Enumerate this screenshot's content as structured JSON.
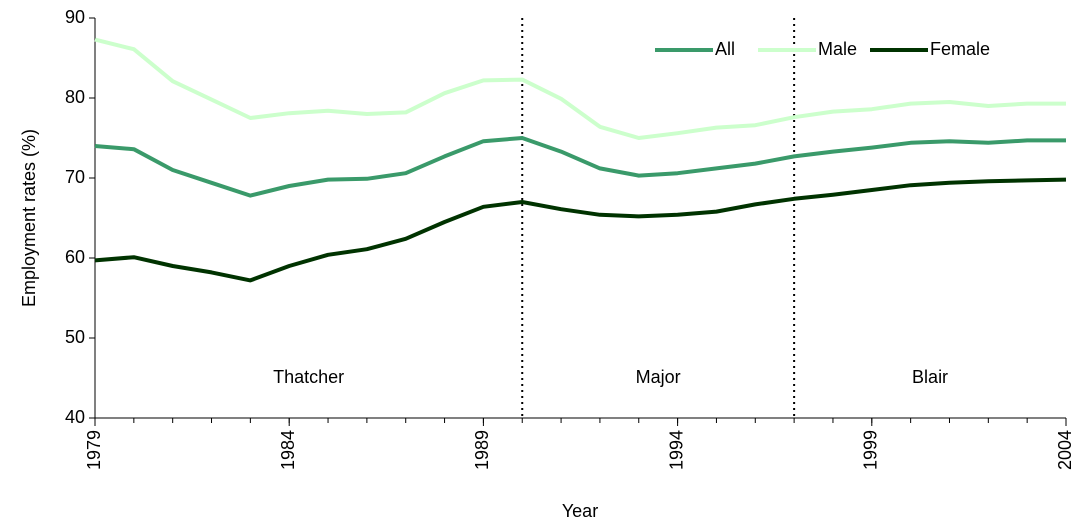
{
  "chart_data": {
    "type": "line",
    "x_label": "Year",
    "y_label": "Employment rates (%)",
    "x": [
      1979,
      1980,
      1981,
      1982,
      1983,
      1984,
      1985,
      1986,
      1987,
      1988,
      1989,
      1990,
      1991,
      1992,
      1993,
      1994,
      1995,
      1996,
      1997,
      1998,
      1999,
      2000,
      2001,
      2002,
      2003,
      2004
    ],
    "series": [
      {
        "name": "All",
        "color": "#3a9a6a",
        "values": [
          74.0,
          73.6,
          71.0,
          69.4,
          67.8,
          69.0,
          69.8,
          69.9,
          70.6,
          72.7,
          74.6,
          75.0,
          73.3,
          71.2,
          70.3,
          70.6,
          71.2,
          71.8,
          72.7,
          73.3,
          73.8,
          74.4,
          74.6,
          74.4,
          74.7,
          74.7
        ]
      },
      {
        "name": "Male",
        "color": "#ccffcc",
        "values": [
          87.3,
          86.1,
          82.1,
          79.8,
          77.5,
          78.1,
          78.4,
          78.0,
          78.2,
          80.6,
          82.2,
          82.3,
          79.9,
          76.4,
          75.0,
          75.6,
          76.3,
          76.6,
          77.6,
          78.3,
          78.6,
          79.3,
          79.5,
          79.0,
          79.3,
          79.3
        ]
      },
      {
        "name": "Female",
        "color": "#003300",
        "values": [
          59.7,
          60.1,
          59.0,
          58.2,
          57.2,
          59.0,
          60.4,
          61.1,
          62.4,
          64.5,
          66.4,
          67.0,
          66.1,
          65.4,
          65.2,
          65.4,
          65.8,
          66.7,
          67.4,
          67.9,
          68.5,
          69.1,
          69.4,
          69.6,
          69.7,
          69.8
        ]
      }
    ],
    "periods": [
      {
        "label": "Thatcher",
        "start": 1979,
        "end": 1990
      },
      {
        "label": "Major",
        "start": 1990,
        "end": 1997
      },
      {
        "label": "Blair",
        "start": 1997,
        "end": 2004
      }
    ],
    "xlim": [
      1979,
      2004
    ],
    "xticks": [
      1979,
      1984,
      1989,
      1994,
      1999,
      2004
    ],
    "ylim": [
      40,
      90
    ],
    "yticks": [
      40,
      50,
      60,
      70,
      80,
      90
    ],
    "legend": "top-right"
  }
}
